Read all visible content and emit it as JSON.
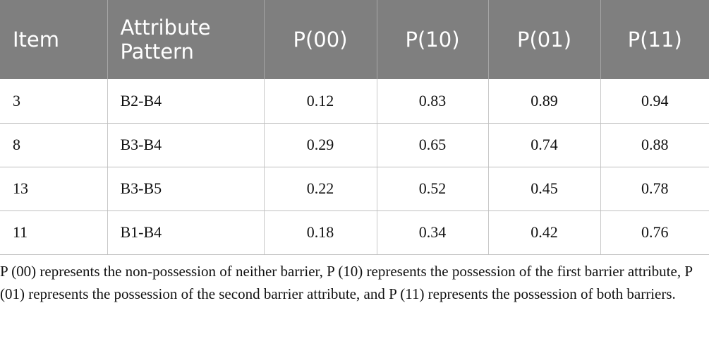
{
  "table": {
    "columns": [
      "Item",
      "Attribute Pattern",
      "P(00)",
      "P(10)",
      "P(01)",
      "P(11)"
    ],
    "rows": [
      [
        "3",
        "B2-B4",
        "0.12",
        "0.83",
        "0.89",
        "0.94"
      ],
      [
        "8",
        "B3-B4",
        "0.29",
        "0.65",
        "0.74",
        "0.88"
      ],
      [
        "13",
        "B3-B5",
        "0.22",
        "0.52",
        "0.45",
        "0.78"
      ],
      [
        "11",
        "B1-B4",
        "0.18",
        "0.34",
        "0.42",
        "0.76"
      ]
    ]
  },
  "footnote": "P (00) represents the non-possession of neither barrier, P (10) represents the possession of the first barrier attribute, P (01) represents the possession of the second barrier attribute, and P (11) represents the possession of both barriers."
}
